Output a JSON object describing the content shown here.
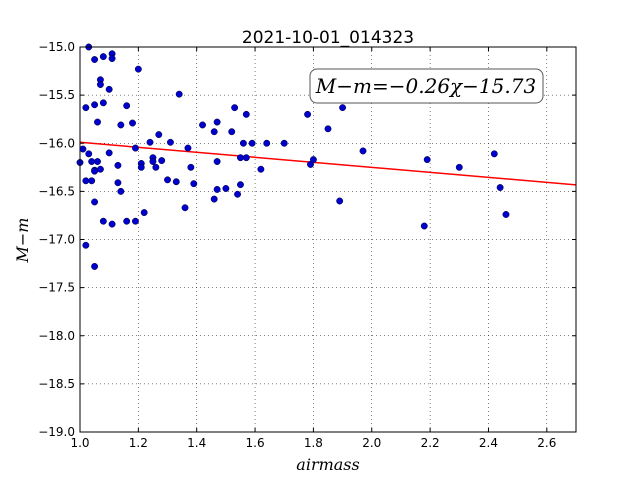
{
  "chart_data": {
    "type": "scatter",
    "title": "2021-10-01_014323",
    "xlabel": "airmass",
    "ylabel": "M−m",
    "xlim": [
      1.0,
      2.7
    ],
    "ylim": [
      -19.0,
      -15.0
    ],
    "y_inverted": true,
    "grid": true,
    "x_ticks": [
      "1.0",
      "1.2",
      "1.4",
      "1.6",
      "1.8",
      "2.0",
      "2.2",
      "2.4",
      "2.6"
    ],
    "y_ticks": [
      "−15.0",
      "−15.5",
      "−16.0",
      "−16.5",
      "−17.0",
      "−17.5",
      "−18.0",
      "−18.5",
      "−19.0"
    ],
    "annotation": "M−m=−0.26χ−15.73",
    "fit_line": {
      "slope": -0.26,
      "intercept": -15.73,
      "color": "#ff0000"
    },
    "point_color": "#0000cc",
    "points": [
      [
        1.0,
        -16.2
      ],
      [
        1.01,
        -16.06
      ],
      [
        1.02,
        -15.63
      ],
      [
        1.02,
        -16.39
      ],
      [
        1.02,
        -17.06
      ],
      [
        1.03,
        -15.0
      ],
      [
        1.03,
        -16.11
      ],
      [
        1.04,
        -16.19
      ],
      [
        1.04,
        -16.39
      ],
      [
        1.05,
        -15.13
      ],
      [
        1.05,
        -15.6
      ],
      [
        1.05,
        -16.28
      ],
      [
        1.05,
        -16.29
      ],
      [
        1.05,
        -16.61
      ],
      [
        1.05,
        -17.28
      ],
      [
        1.06,
        -15.78
      ],
      [
        1.06,
        -16.19
      ],
      [
        1.07,
        -15.34
      ],
      [
        1.07,
        -15.39
      ],
      [
        1.07,
        -16.27
      ],
      [
        1.08,
        -15.1
      ],
      [
        1.08,
        -15.58
      ],
      [
        1.08,
        -16.81
      ],
      [
        1.1,
        -15.44
      ],
      [
        1.1,
        -16.1
      ],
      [
        1.11,
        -15.07
      ],
      [
        1.11,
        -15.12
      ],
      [
        1.11,
        -16.84
      ],
      [
        1.13,
        -16.23
      ],
      [
        1.13,
        -16.41
      ],
      [
        1.14,
        -15.81
      ],
      [
        1.14,
        -16.5
      ],
      [
        1.16,
        -15.61
      ],
      [
        1.16,
        -16.81
      ],
      [
        1.18,
        -15.79
      ],
      [
        1.19,
        -16.05
      ],
      [
        1.19,
        -16.81
      ],
      [
        1.2,
        -15.23
      ],
      [
        1.21,
        -16.21
      ],
      [
        1.21,
        -16.25
      ],
      [
        1.22,
        -16.72
      ],
      [
        1.24,
        -15.99
      ],
      [
        1.25,
        -16.15
      ],
      [
        1.25,
        -16.19
      ],
      [
        1.26,
        -16.25
      ],
      [
        1.27,
        -15.91
      ],
      [
        1.28,
        -16.18
      ],
      [
        1.3,
        -16.38
      ],
      [
        1.31,
        -15.99
      ],
      [
        1.33,
        -16.4
      ],
      [
        1.34,
        -15.49
      ],
      [
        1.36,
        -16.67
      ],
      [
        1.37,
        -16.05
      ],
      [
        1.38,
        -16.25
      ],
      [
        1.39,
        -16.42
      ],
      [
        1.42,
        -15.81
      ],
      [
        1.46,
        -15.88
      ],
      [
        1.46,
        -16.58
      ],
      [
        1.47,
        -15.78
      ],
      [
        1.47,
        -16.19
      ],
      [
        1.47,
        -16.48
      ],
      [
        1.5,
        -16.47
      ],
      [
        1.52,
        -15.88
      ],
      [
        1.53,
        -15.63
      ],
      [
        1.54,
        -16.53
      ],
      [
        1.55,
        -16.15
      ],
      [
        1.55,
        -16.43
      ],
      [
        1.56,
        -16.0
      ],
      [
        1.57,
        -15.7
      ],
      [
        1.57,
        -16.15
      ],
      [
        1.59,
        -16.0
      ],
      [
        1.62,
        -16.27
      ],
      [
        1.64,
        -16.0
      ],
      [
        1.7,
        -16.0
      ],
      [
        1.78,
        -15.7
      ],
      [
        1.79,
        -16.22
      ],
      [
        1.8,
        -16.17
      ],
      [
        1.85,
        -15.85
      ],
      [
        1.89,
        -16.6
      ],
      [
        1.9,
        -15.63
      ],
      [
        1.97,
        -16.08
      ],
      [
        2.18,
        -16.86
      ],
      [
        2.19,
        -16.17
      ],
      [
        2.3,
        -16.25
      ],
      [
        2.42,
        -16.11
      ],
      [
        2.44,
        -16.46
      ],
      [
        2.46,
        -16.74
      ]
    ]
  }
}
